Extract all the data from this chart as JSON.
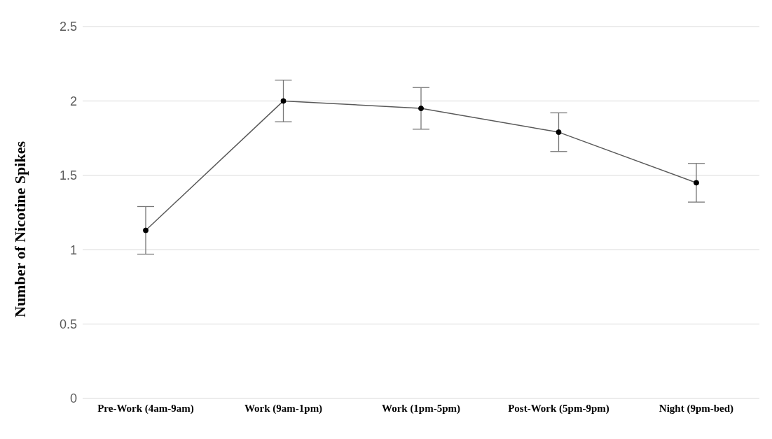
{
  "chart_data": {
    "type": "line",
    "ylabel": "Number of Nicotine Spikes",
    "categories": [
      "Pre-Work (4am-9am)",
      "Work (9am-1pm)",
      "Work (1pm-5pm)",
      "Post-Work (5pm-9pm)",
      "Night (9pm-bed)"
    ],
    "series": [
      {
        "color": "#595959",
        "values": [
          1.13,
          2.0,
          1.95,
          1.79,
          1.45
        ],
        "errors": [
          0.16,
          0.14,
          0.14,
          0.13,
          0.13
        ]
      }
    ],
    "ylim": [
      0,
      2.5
    ],
    "yticks": [
      0,
      0.5,
      1,
      1.5,
      2,
      2.5
    ],
    "grid": "y",
    "marker": "circle",
    "line_style": "solid"
  }
}
